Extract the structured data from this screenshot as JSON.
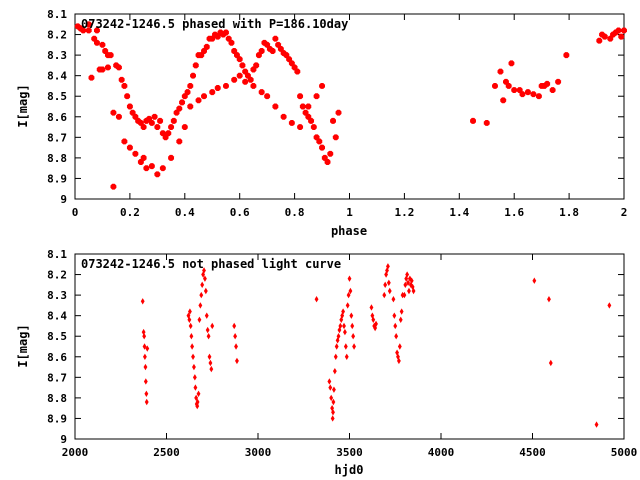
{
  "chart_data": [
    {
      "type": "scatter",
      "title": "073242-1246.5 phased with P=186.10day",
      "xlabel": "phase",
      "ylabel": "I[mag]",
      "xlim": [
        0,
        2
      ],
      "ylim": [
        8.1,
        9.0
      ],
      "y_inverted": true,
      "x_ticks": [
        "0",
        "0.2",
        "0.4",
        "0.6",
        "0.8",
        "1",
        "1.2",
        "1.4",
        "1.6",
        "1.8",
        "2"
      ],
      "y_ticks": [
        "8.1",
        "8.2",
        "8.3",
        "8.4",
        "8.5",
        "8.6",
        "8.7",
        "8.8",
        "8.9",
        "9"
      ],
      "marker_color": "#ff0000",
      "marker": "filled-octagon",
      "series": [
        {
          "x": [
            0.01,
            0.02,
            0.03,
            0.05,
            0.06,
            0.07,
            0.08,
            0.09,
            0.1,
            0.11,
            0.12,
            0.13,
            0.14,
            0.15,
            0.16,
            0.17,
            0.18,
            0.19,
            0.2,
            0.21,
            0.22,
            0.23,
            0.24,
            0.25,
            0.26,
            0.27,
            0.28,
            0.29,
            0.3,
            0.31,
            0.32,
            0.33,
            0.34,
            0.35,
            0.36,
            0.37,
            0.38,
            0.39,
            0.4,
            0.41,
            0.42,
            0.43,
            0.44,
            0.45,
            0.46,
            0.47,
            0.48,
            0.49,
            0.5,
            0.51,
            0.52,
            0.53,
            0.54,
            0.55,
            0.56,
            0.57,
            0.58,
            0.59,
            0.6,
            0.61,
            0.62,
            0.63,
            0.64,
            0.65,
            0.66,
            0.67,
            0.68,
            0.69,
            0.7,
            0.71,
            0.72,
            0.73,
            0.74,
            0.75,
            0.76,
            0.77,
            0.78,
            0.79,
            0.8,
            0.81,
            0.82,
            0.83,
            0.84,
            0.85,
            0.86,
            0.87,
            0.88,
            0.89,
            0.9,
            0.91,
            0.92,
            0.93,
            0.94,
            0.95,
            0.96,
            0.05,
            0.08,
            0.1,
            0.12,
            0.14,
            0.16,
            0.18,
            0.2,
            0.22,
            0.24,
            0.25,
            0.26,
            0.28,
            0.3,
            0.32,
            0.35,
            0.38,
            0.4,
            0.42,
            0.45,
            0.47,
            0.5,
            0.52,
            0.55,
            0.58,
            0.6,
            0.62,
            0.65,
            0.68,
            0.7,
            0.73,
            0.76,
            0.79,
            0.82,
            0.85,
            0.88,
            0.9,
            1.45,
            1.5,
            1.53,
            1.55,
            1.56,
            1.57,
            1.58,
            1.59,
            1.6,
            1.62,
            1.63,
            1.65,
            1.67,
            1.69,
            1.7,
            1.71,
            1.72,
            1.74,
            1.76,
            1.79,
            1.91,
            1.92,
            1.93,
            1.95,
            1.96,
            1.97,
            1.98,
            1.99,
            2.0
          ],
          "y": [
            8.16,
            8.17,
            8.18,
            8.18,
            8.41,
            8.22,
            8.24,
            8.37,
            8.25,
            8.28,
            8.3,
            8.3,
            8.94,
            8.35,
            8.36,
            8.42,
            8.45,
            8.5,
            8.55,
            8.58,
            8.6,
            8.62,
            8.63,
            8.65,
            8.62,
            8.61,
            8.63,
            8.6,
            8.65,
            8.62,
            8.68,
            8.7,
            8.68,
            8.65,
            8.62,
            8.58,
            8.56,
            8.53,
            8.5,
            8.48,
            8.45,
            8.4,
            8.35,
            8.3,
            8.3,
            8.28,
            8.26,
            8.22,
            8.22,
            8.2,
            8.21,
            8.19,
            8.2,
            8.19,
            8.22,
            8.24,
            8.28,
            8.3,
            8.32,
            8.35,
            8.38,
            8.4,
            8.42,
            8.37,
            8.35,
            8.3,
            8.28,
            8.24,
            8.25,
            8.27,
            8.28,
            8.22,
            8.25,
            8.27,
            8.29,
            8.3,
            8.32,
            8.34,
            8.36,
            8.38,
            8.5,
            8.55,
            8.58,
            8.6,
            8.62,
            8.65,
            8.7,
            8.72,
            8.75,
            8.8,
            8.82,
            8.78,
            8.62,
            8.7,
            8.58,
            8.15,
            8.18,
            8.37,
            8.36,
            8.58,
            8.6,
            8.72,
            8.75,
            8.78,
            8.82,
            8.8,
            8.85,
            8.84,
            8.88,
            8.85,
            8.8,
            8.72,
            8.65,
            8.55,
            8.52,
            8.5,
            8.48,
            8.46,
            8.45,
            8.42,
            8.4,
            8.43,
            8.45,
            8.48,
            8.5,
            8.55,
            8.6,
            8.63,
            8.65,
            8.55,
            8.5,
            8.45,
            8.62,
            8.63,
            8.45,
            8.38,
            8.52,
            8.43,
            8.45,
            8.34,
            8.47,
            8.47,
            8.49,
            8.48,
            8.49,
            8.5,
            8.45,
            8.45,
            8.44,
            8.47,
            8.43,
            8.3,
            8.23,
            8.2,
            8.21,
            8.22,
            8.2,
            8.19,
            8.18,
            8.21,
            8.18
          ]
        }
      ]
    },
    {
      "type": "scatter",
      "title": "073242-1246.5 not phased light curve",
      "xlabel": "hjd0",
      "ylabel": "I[mag]",
      "xlim": [
        2000,
        5000
      ],
      "ylim": [
        8.1,
        9.0
      ],
      "y_inverted": true,
      "x_ticks": [
        "2000",
        "2500",
        "3000",
        "3500",
        "4000",
        "4500",
        "5000"
      ],
      "y_ticks": [
        "8.1",
        "8.2",
        "8.3",
        "8.4",
        "8.5",
        "8.6",
        "8.7",
        "8.8",
        "8.9",
        "9"
      ],
      "marker_color": "#ff0000",
      "marker": "filled-diamond",
      "series": [
        {
          "x": [
            2370,
            2375,
            2378,
            2380,
            2382,
            2385,
            2387,
            2390,
            2392,
            2395,
            2620,
            2625,
            2628,
            2632,
            2636,
            2640,
            2645,
            2650,
            2655,
            2658,
            2662,
            2665,
            2668,
            2670,
            2675,
            2680,
            2685,
            2690,
            2695,
            2700,
            2705,
            2710,
            2715,
            2720,
            2725,
            2730,
            2735,
            2740,
            2745,
            2750,
            2870,
            2875,
            2880,
            2885,
            3320,
            3390,
            3395,
            3400,
            3405,
            3408,
            3410,
            3412,
            3415,
            3420,
            3425,
            3430,
            3435,
            3440,
            3445,
            3450,
            3455,
            3460,
            3465,
            3470,
            3475,
            3480,
            3485,
            3490,
            3495,
            3500,
            3505,
            3510,
            3515,
            3520,
            3525,
            3620,
            3625,
            3630,
            3635,
            3640,
            3645,
            3690,
            3695,
            3700,
            3705,
            3710,
            3715,
            3720,
            3740,
            3745,
            3750,
            3755,
            3760,
            3765,
            3770,
            3775,
            3780,
            3785,
            3790,
            3800,
            3805,
            3810,
            3815,
            3820,
            3825,
            3830,
            3835,
            3840,
            3845,
            3850,
            4510,
            4590,
            4600,
            4850,
            4920
          ],
          "y": [
            8.33,
            8.48,
            8.5,
            8.55,
            8.6,
            8.65,
            8.72,
            8.78,
            8.82,
            8.56,
            8.4,
            8.42,
            8.38,
            8.45,
            8.5,
            8.55,
            8.6,
            8.65,
            8.7,
            8.75,
            8.8,
            8.83,
            8.84,
            8.82,
            8.78,
            8.42,
            8.35,
            8.3,
            8.25,
            8.2,
            8.18,
            8.22,
            8.28,
            8.4,
            8.47,
            8.5,
            8.6,
            8.63,
            8.66,
            8.45,
            8.45,
            8.5,
            8.55,
            8.62,
            8.32,
            8.72,
            8.75,
            8.8,
            8.85,
            8.9,
            8.87,
            8.82,
            8.76,
            8.67,
            8.6,
            8.55,
            8.52,
            8.5,
            8.47,
            8.45,
            8.42,
            8.4,
            8.38,
            8.45,
            8.48,
            8.55,
            8.6,
            8.35,
            8.3,
            8.22,
            8.28,
            8.4,
            8.45,
            8.5,
            8.55,
            8.36,
            8.4,
            8.42,
            8.45,
            8.46,
            8.44,
            8.3,
            8.25,
            8.2,
            8.18,
            8.16,
            8.24,
            8.28,
            8.32,
            8.4,
            8.45,
            8.5,
            8.58,
            8.6,
            8.62,
            8.55,
            8.42,
            8.38,
            8.3,
            8.3,
            8.25,
            8.22,
            8.2,
            8.24,
            8.28,
            8.22,
            8.25,
            8.23,
            8.26,
            8.28,
            8.23,
            8.32,
            8.63,
            8.93,
            8.35
          ]
        }
      ]
    }
  ]
}
